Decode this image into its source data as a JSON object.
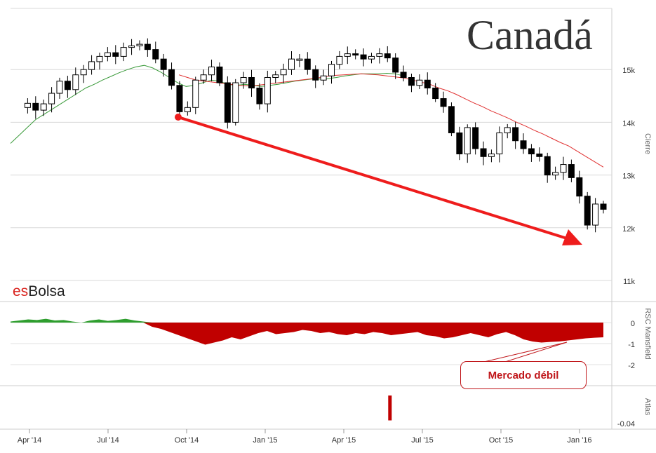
{
  "chart_data": {
    "type": "candlestick",
    "title": "Canadá",
    "brand": {
      "prefix": "es",
      "name": "Bolsa"
    },
    "x_ticks": [
      "Apr '14",
      "Jul '14",
      "Oct '14",
      "Jan '15",
      "Apr '15",
      "Jul '15",
      "Oct '15",
      "Jan '16"
    ],
    "price_panel": {
      "ylabel": "Cierre",
      "yticks": [
        "11k",
        "12k",
        "13k",
        "14k",
        "15k"
      ],
      "ylim": [
        11000,
        16000
      ],
      "closes": [
        14280,
        14360,
        14230,
        14350,
        14550,
        14780,
        14620,
        14900,
        15000,
        15150,
        15250,
        15320,
        15250,
        15420,
        15450,
        15480,
        15380,
        15200,
        15000,
        14700,
        14200,
        14280,
        14800,
        14900,
        15050,
        14750,
        14000,
        14750,
        14850,
        14650,
        14350,
        14850,
        14900,
        15000,
        15200,
        15200,
        15000,
        14800,
        14880,
        15100,
        15250,
        15300,
        15280,
        15200,
        15250,
        15300,
        15220,
        14950,
        14850,
        14700,
        14800,
        14650,
        14450,
        14300,
        13800,
        13400,
        13900,
        13500,
        13350,
        13400,
        13800,
        13900,
        13650,
        13500,
        13400,
        13350,
        13000,
        13050,
        13200,
        12950,
        12600,
        12050,
        12450,
        12350
      ],
      "series": [
        {
          "name": "",
          "color": "#3a9a3a",
          "values": [
            13600,
            13750,
            13900,
            14050,
            14150,
            14250,
            14350,
            14450,
            14550,
            14650,
            14720,
            14800,
            14870,
            14940,
            15000,
            15050,
            15080,
            15030,
            14950,
            14850,
            14750,
            14680,
            14700,
            14750,
            14800,
            14780,
            14720,
            14700,
            14720,
            14700,
            14680,
            14700,
            14720,
            14750,
            14780,
            14800,
            14820,
            14820,
            14830,
            14850,
            14880,
            14900,
            14920,
            14920,
            14920,
            14930,
            14920,
            14880
          ]
        },
        {
          "name": "",
          "color": "#e03030",
          "values": [
            14900,
            14850,
            14800,
            14780,
            14760,
            14740,
            14720,
            14700,
            14690,
            14700,
            14720,
            14740,
            14760,
            14780,
            14800,
            14820,
            14840,
            14870,
            14890,
            14900,
            14910,
            14920,
            14910,
            14900,
            14880,
            14860,
            14840,
            14800,
            14760,
            14720,
            14650,
            14600,
            14530,
            14450,
            14370,
            14300,
            14220,
            14150,
            14080,
            14000,
            13930,
            13850,
            13780,
            13700,
            13620,
            13550,
            13450,
            13350,
            13250,
            13150
          ]
        }
      ]
    },
    "rsc_panel": {
      "ylabel": "RSC Mansfield",
      "yticks": [
        "0",
        "-1",
        "-2"
      ],
      "ylim": [
        -2.5,
        0.5
      ],
      "values": [
        0.05,
        0.1,
        0.15,
        0.12,
        0.18,
        0.1,
        0.12,
        0.05,
        0.0,
        0.1,
        0.15,
        0.08,
        0.12,
        0.18,
        0.1,
        0.05,
        -0.2,
        -0.3,
        -0.45,
        -0.6,
        -0.75,
        -0.9,
        -1.05,
        -0.95,
        -0.85,
        -0.7,
        -0.8,
        -0.65,
        -0.5,
        -0.4,
        -0.55,
        -0.5,
        -0.45,
        -0.35,
        -0.4,
        -0.5,
        -0.45,
        -0.55,
        -0.6,
        -0.5,
        -0.55,
        -0.45,
        -0.5,
        -0.6,
        -0.55,
        -0.5,
        -0.45,
        -0.6,
        -0.65,
        -0.75,
        -0.7,
        -0.6,
        -0.5,
        -0.6,
        -0.7,
        -0.55,
        -0.45,
        -0.6,
        -0.8,
        -0.9,
        -0.95,
        -0.92,
        -0.9,
        -0.85,
        -0.8,
        -0.75,
        -0.72,
        -0.7
      ],
      "positive_color": "#2e9e2e",
      "negative_color": "#c00000"
    },
    "atlas_panel": {
      "ylabel": "Atlas",
      "yticks": [
        "-0.04"
      ],
      "bars": [
        {
          "x_fraction": 0.64,
          "value": -0.035
        }
      ],
      "color": "#c00000"
    },
    "annotations": {
      "trend_arrow_color": "#ee1c1c",
      "callout": "Mercado débil"
    }
  }
}
